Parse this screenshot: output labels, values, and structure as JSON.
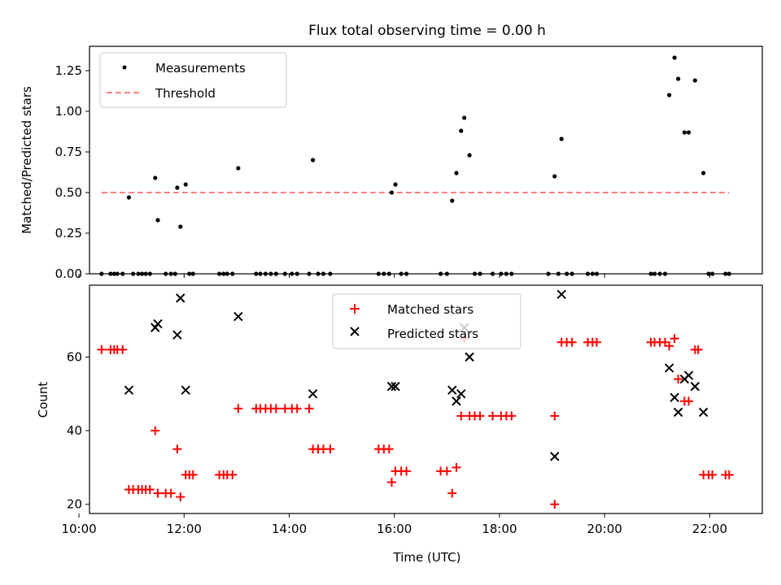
{
  "chart_data": [
    {
      "type": "scatter",
      "title": "Flux total observing time = 0.00 h",
      "ylabel": "Matched/Predicted stars",
      "xlim": [
        10.2,
        23.0
      ],
      "ylim": [
        0,
        1.4
      ],
      "y_ticks": [
        0.0,
        0.25,
        0.5,
        0.75,
        1.0,
        1.25
      ],
      "y_tick_labels": [
        "0.00",
        "0.25",
        "0.50",
        "0.75",
        "1.00",
        "1.25"
      ],
      "legend": {
        "position": "top-left",
        "entries": [
          "Measurements",
          "Threshold"
        ]
      },
      "series": [
        {
          "name": "Measurements",
          "marker": "dot",
          "color": "#000000",
          "points": [
            [
              10.43,
              0
            ],
            [
              10.6,
              0
            ],
            [
              10.67,
              0
            ],
            [
              10.73,
              0
            ],
            [
              10.83,
              0
            ],
            [
              10.95,
              0.47
            ],
            [
              11.03,
              0
            ],
            [
              11.13,
              0
            ],
            [
              11.2,
              0
            ],
            [
              11.27,
              0
            ],
            [
              11.35,
              0
            ],
            [
              11.45,
              0.59
            ],
            [
              11.5,
              0.33
            ],
            [
              11.65,
              0
            ],
            [
              11.75,
              0
            ],
            [
              11.83,
              0
            ],
            [
              11.87,
              0.53
            ],
            [
              11.93,
              0.29
            ],
            [
              12.03,
              0.55
            ],
            [
              12.1,
              0
            ],
            [
              12.17,
              0
            ],
            [
              12.67,
              0
            ],
            [
              12.75,
              0
            ],
            [
              12.82,
              0
            ],
            [
              12.92,
              0
            ],
            [
              13.03,
              0.65
            ],
            [
              13.37,
              0
            ],
            [
              13.45,
              0
            ],
            [
              13.55,
              0
            ],
            [
              13.65,
              0
            ],
            [
              13.75,
              0
            ],
            [
              13.92,
              0
            ],
            [
              14.05,
              0
            ],
            [
              14.15,
              0
            ],
            [
              14.38,
              0
            ],
            [
              14.45,
              0.7
            ],
            [
              14.55,
              0
            ],
            [
              14.65,
              0
            ],
            [
              14.78,
              0
            ],
            [
              15.7,
              0
            ],
            [
              15.8,
              0
            ],
            [
              15.9,
              0
            ],
            [
              15.95,
              0.5
            ],
            [
              16.02,
              0.55
            ],
            [
              16.13,
              0
            ],
            [
              16.23,
              0
            ],
            [
              16.88,
              0
            ],
            [
              17.0,
              0
            ],
            [
              17.1,
              0.45
            ],
            [
              17.18,
              0.62
            ],
            [
              17.27,
              0.88
            ],
            [
              17.33,
              0.96
            ],
            [
              17.43,
              0.73
            ],
            [
              17.53,
              0
            ],
            [
              17.63,
              0
            ],
            [
              17.87,
              0
            ],
            [
              18.03,
              0
            ],
            [
              18.13,
              0
            ],
            [
              18.23,
              0
            ],
            [
              18.93,
              0
            ],
            [
              19.05,
              0.6
            ],
            [
              19.12,
              0
            ],
            [
              19.18,
              0.83
            ],
            [
              19.28,
              0
            ],
            [
              19.38,
              0
            ],
            [
              19.68,
              0
            ],
            [
              19.77,
              0
            ],
            [
              19.85,
              0
            ],
            [
              20.88,
              0
            ],
            [
              20.95,
              0
            ],
            [
              21.05,
              0
            ],
            [
              21.15,
              0
            ],
            [
              21.23,
              1.1
            ],
            [
              21.33,
              1.33
            ],
            [
              21.4,
              1.2
            ],
            [
              21.52,
              0.87
            ],
            [
              21.6,
              0.87
            ],
            [
              21.72,
              1.19
            ],
            [
              21.88,
              0.62
            ],
            [
              21.98,
              0
            ],
            [
              22.05,
              0
            ],
            [
              22.3,
              0
            ],
            [
              22.37,
              0
            ]
          ]
        },
        {
          "name": "Threshold",
          "style": "dashed",
          "color": "#ff8080",
          "x": [
            10.43,
            22.37
          ],
          "y": [
            0.5,
            0.5
          ]
        }
      ]
    },
    {
      "type": "scatter",
      "xlabel": "Time (UTC)",
      "ylabel": "Count",
      "xlim": [
        10.2,
        23.0
      ],
      "ylim": [
        17.5,
        79.5
      ],
      "x_ticks": [
        10,
        12,
        14,
        16,
        18,
        20,
        22
      ],
      "x_tick_labels": [
        "10:00",
        "12:00",
        "14:00",
        "16:00",
        "18:00",
        "20:00",
        "22:00"
      ],
      "y_ticks": [
        20,
        40,
        60
      ],
      "y_tick_labels": [
        "20",
        "40",
        "60"
      ],
      "legend": {
        "position": "top-center",
        "entries": [
          "Matched stars",
          "Predicted stars"
        ]
      },
      "series": [
        {
          "name": "Matched stars",
          "marker": "plus",
          "color": "#ff0000",
          "points": [
            [
              10.43,
              62
            ],
            [
              10.6,
              62
            ],
            [
              10.67,
              62
            ],
            [
              10.73,
              62
            ],
            [
              10.83,
              62
            ],
            [
              10.95,
              24
            ],
            [
              11.03,
              24
            ],
            [
              11.13,
              24
            ],
            [
              11.2,
              24
            ],
            [
              11.27,
              24
            ],
            [
              11.35,
              24
            ],
            [
              11.45,
              40
            ],
            [
              11.5,
              23
            ],
            [
              11.65,
              23
            ],
            [
              11.75,
              23
            ],
            [
              11.87,
              35
            ],
            [
              11.93,
              22
            ],
            [
              12.03,
              28
            ],
            [
              12.1,
              28
            ],
            [
              12.17,
              28
            ],
            [
              12.67,
              28
            ],
            [
              12.75,
              28
            ],
            [
              12.82,
              28
            ],
            [
              12.92,
              28
            ],
            [
              13.03,
              46
            ],
            [
              13.37,
              46
            ],
            [
              13.45,
              46
            ],
            [
              13.55,
              46
            ],
            [
              13.65,
              46
            ],
            [
              13.75,
              46
            ],
            [
              13.92,
              46
            ],
            [
              14.05,
              46
            ],
            [
              14.15,
              46
            ],
            [
              14.38,
              46
            ],
            [
              14.45,
              35
            ],
            [
              14.55,
              35
            ],
            [
              14.65,
              35
            ],
            [
              14.78,
              35
            ],
            [
              15.7,
              35
            ],
            [
              15.8,
              35
            ],
            [
              15.9,
              35
            ],
            [
              15.95,
              26
            ],
            [
              16.02,
              29
            ],
            [
              16.13,
              29
            ],
            [
              16.23,
              29
            ],
            [
              16.88,
              29
            ],
            [
              17.0,
              29
            ],
            [
              17.1,
              23
            ],
            [
              17.18,
              30
            ],
            [
              17.27,
              44
            ],
            [
              17.33,
              65
            ],
            [
              17.43,
              44
            ],
            [
              17.53,
              44
            ],
            [
              17.63,
              44
            ],
            [
              17.87,
              44
            ],
            [
              18.03,
              44
            ],
            [
              18.13,
              44
            ],
            [
              18.23,
              44
            ],
            [
              19.05,
              44
            ],
            [
              19.05,
              20
            ],
            [
              19.18,
              64
            ],
            [
              19.28,
              64
            ],
            [
              19.38,
              64
            ],
            [
              19.68,
              64
            ],
            [
              19.77,
              64
            ],
            [
              19.85,
              64
            ],
            [
              20.88,
              64
            ],
            [
              20.95,
              64
            ],
            [
              21.05,
              64
            ],
            [
              21.15,
              64
            ],
            [
              21.23,
              63
            ],
            [
              21.33,
              65
            ],
            [
              21.4,
              54
            ],
            [
              21.52,
              48
            ],
            [
              21.6,
              48
            ],
            [
              21.72,
              62
            ],
            [
              21.78,
              62
            ],
            [
              21.88,
              28
            ],
            [
              21.98,
              28
            ],
            [
              22.05,
              28
            ],
            [
              22.3,
              28
            ],
            [
              22.37,
              28
            ]
          ]
        },
        {
          "name": "Predicted stars",
          "marker": "x",
          "color": "#000000",
          "points": [
            [
              10.95,
              51
            ],
            [
              11.45,
              68
            ],
            [
              11.5,
              69
            ],
            [
              11.87,
              66
            ],
            [
              11.93,
              76
            ],
            [
              12.03,
              51
            ],
            [
              13.03,
              71
            ],
            [
              14.45,
              50
            ],
            [
              15.95,
              52
            ],
            [
              16.02,
              52
            ],
            [
              17.1,
              51
            ],
            [
              17.18,
              48
            ],
            [
              17.27,
              50
            ],
            [
              17.33,
              68
            ],
            [
              17.43,
              60
            ],
            [
              19.05,
              33
            ],
            [
              19.18,
              77
            ],
            [
              21.23,
              57
            ],
            [
              21.33,
              49
            ],
            [
              21.4,
              45
            ],
            [
              21.52,
              54
            ],
            [
              21.6,
              55
            ],
            [
              21.72,
              52
            ],
            [
              21.88,
              45
            ]
          ]
        }
      ]
    }
  ]
}
